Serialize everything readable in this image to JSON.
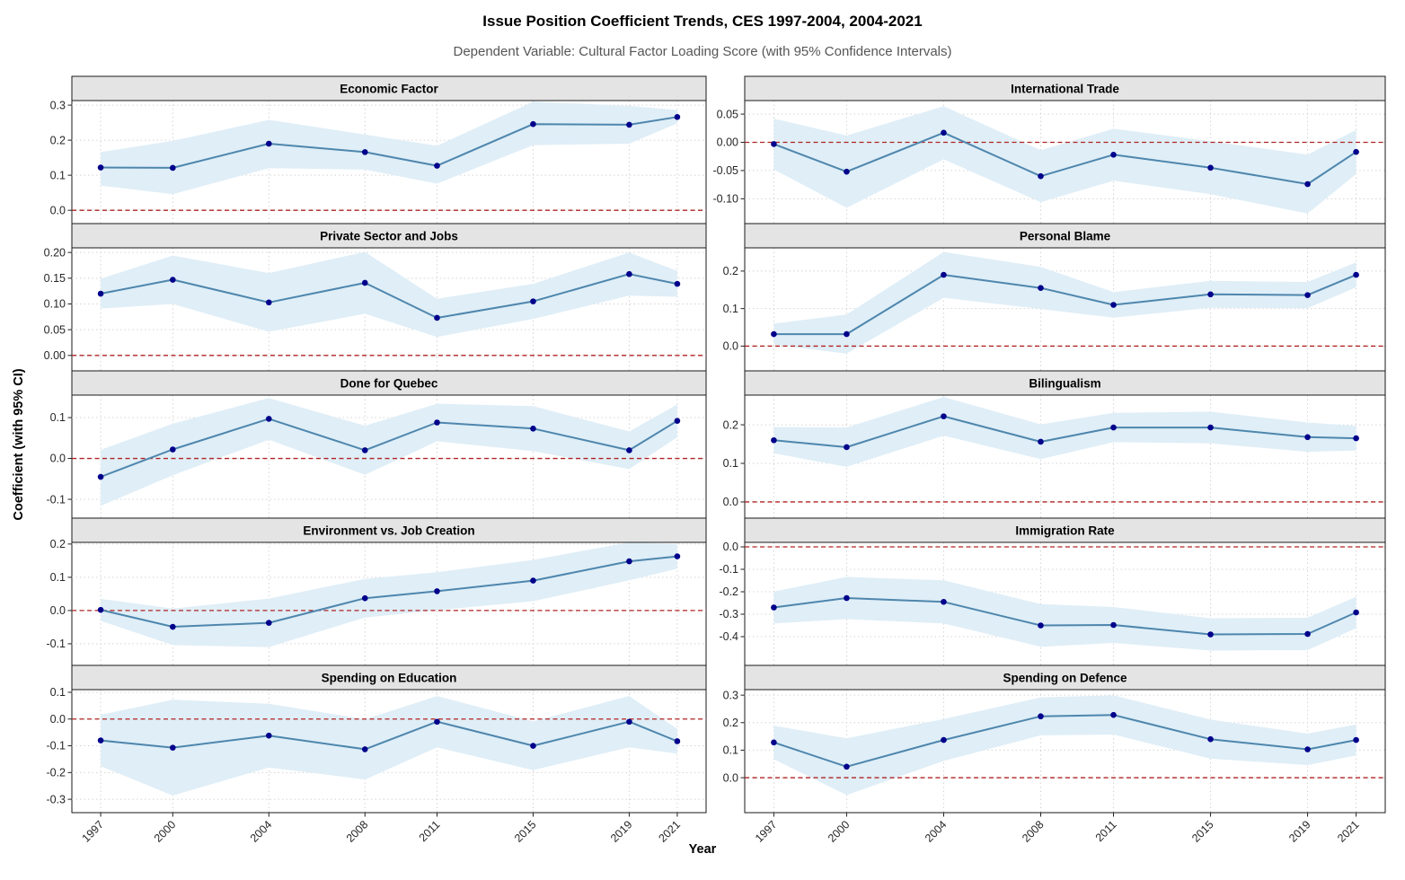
{
  "chart_data": {
    "type": "line",
    "title": "Issue Position Coefficient Trends, CES 1997-2004, 2004-2021",
    "subtitle": "Dependent Variable: Cultural Factor Loading Score (with 95% Confidence Intervals)",
    "xlabel": "Year",
    "ylabel": "Coefficient (with 95% CI)",
    "legend": "none",
    "grid": "dotted-major",
    "facets_layout": {
      "rows": 5,
      "cols": 2
    },
    "x": [
      1997,
      2000,
      2004,
      2008,
      2011,
      2015,
      2019,
      2021
    ],
    "x_tick_labels": [
      "1997",
      "2000",
      "2004",
      "2008",
      "2011",
      "2015",
      "2019",
      "2021"
    ],
    "colors": {
      "line": "#4e86ad",
      "point": "#00008b",
      "ribbon": "#dfeef7",
      "zero_line": "#b22222",
      "strip_bg": "#e4e4e4",
      "grid": "#d4d4d4",
      "panel_border": "#1a1a1a",
      "tick_text": "#262626",
      "axis_tick": "#222222"
    },
    "panels": [
      {
        "title": "Economic Factor",
        "slug": "economic-factor",
        "ylim": [
          -0.038,
          0.313
        ],
        "ytick_values": [
          0.0,
          0.1,
          0.2,
          0.3
        ],
        "ytick_labels": [
          "0.0",
          "0.1",
          "0.2",
          "0.3"
        ],
        "values": [
          0.122,
          0.121,
          0.19,
          0.166,
          0.127,
          0.246,
          0.244,
          0.266
        ],
        "ci_lower": [
          0.07,
          0.046,
          0.12,
          0.116,
          0.076,
          0.186,
          0.19,
          0.248
        ],
        "ci_upper": [
          0.166,
          0.198,
          0.258,
          0.216,
          0.184,
          0.31,
          0.298,
          0.286
        ]
      },
      {
        "title": "International Trade",
        "slug": "international-trade",
        "ylim": [
          -0.144,
          0.074
        ],
        "ytick_values": [
          -0.1,
          -0.05,
          0.0,
          0.05
        ],
        "ytick_labels": [
          "-0.10",
          "-0.05",
          "0.00",
          "0.05"
        ],
        "values": [
          -0.003,
          -0.052,
          0.017,
          -0.06,
          -0.022,
          -0.045,
          -0.074,
          -0.017
        ],
        "ci_lower": [
          -0.048,
          -0.116,
          -0.03,
          -0.106,
          -0.068,
          -0.092,
          -0.126,
          -0.056
        ],
        "ci_upper": [
          0.042,
          0.012,
          0.064,
          -0.014,
          0.024,
          0.002,
          -0.022,
          0.022
        ]
      },
      {
        "title": "Private Sector and Jobs",
        "slug": "private-sector-and-jobs",
        "ylim": [
          -0.03,
          0.209
        ],
        "ytick_values": [
          0.0,
          0.05,
          0.1,
          0.15,
          0.2
        ],
        "ytick_labels": [
          "0.00",
          "0.05",
          "0.10",
          "0.15",
          "0.20"
        ],
        "values": [
          0.12,
          0.147,
          0.103,
          0.141,
          0.073,
          0.105,
          0.158,
          0.139
        ],
        "ci_lower": [
          0.091,
          0.1,
          0.046,
          0.081,
          0.036,
          0.071,
          0.116,
          0.114
        ],
        "ci_upper": [
          0.149,
          0.194,
          0.16,
          0.201,
          0.11,
          0.139,
          0.2,
          0.164
        ]
      },
      {
        "title": "Personal Blame",
        "slug": "personal-blame",
        "ylim": [
          -0.066,
          0.262
        ],
        "ytick_values": [
          0.0,
          0.1,
          0.2
        ],
        "ytick_labels": [
          "0.0",
          "0.1",
          "0.2"
        ],
        "values": [
          0.032,
          0.032,
          0.19,
          0.155,
          0.11,
          0.138,
          0.136,
          0.19
        ],
        "ci_lower": [
          0.004,
          -0.02,
          0.129,
          0.099,
          0.076,
          0.102,
          0.101,
          0.157
        ],
        "ci_upper": [
          0.06,
          0.084,
          0.251,
          0.211,
          0.144,
          0.174,
          0.171,
          0.223
        ]
      },
      {
        "title": "Done for Quebec",
        "slug": "done-for-quebec",
        "ylim": [
          -0.146,
          0.155
        ],
        "ytick_values": [
          -0.1,
          0.0,
          0.1
        ],
        "ytick_labels": [
          "-0.1",
          "0.0",
          "0.1"
        ],
        "values": [
          -0.045,
          0.022,
          0.097,
          0.02,
          0.088,
          0.073,
          0.02,
          0.092
        ],
        "ci_lower": [
          -0.116,
          -0.041,
          0.046,
          -0.04,
          0.042,
          0.018,
          -0.026,
          0.052
        ],
        "ci_upper": [
          0.021,
          0.085,
          0.148,
          0.08,
          0.134,
          0.128,
          0.066,
          0.132
        ]
      },
      {
        "title": "Bilingualism",
        "slug": "bilingualism",
        "ylim": [
          -0.042,
          0.277
        ],
        "ytick_values": [
          0.0,
          0.1,
          0.2
        ],
        "ytick_labels": [
          "0.0",
          "0.1",
          "0.2"
        ],
        "values": [
          0.16,
          0.142,
          0.222,
          0.156,
          0.193,
          0.193,
          0.168,
          0.165
        ],
        "ci_lower": [
          0.126,
          0.091,
          0.172,
          0.111,
          0.155,
          0.152,
          0.13,
          0.133
        ],
        "ci_upper": [
          0.194,
          0.193,
          0.272,
          0.201,
          0.231,
          0.234,
          0.206,
          0.197
        ]
      },
      {
        "title": "Environment vs. Job Creation",
        "slug": "environment-vs-job-creation",
        "ylim": [
          -0.165,
          0.205
        ],
        "ytick_values": [
          -0.1,
          0.0,
          0.1,
          0.2
        ],
        "ytick_labels": [
          "-0.1",
          "0.0",
          "0.1",
          "0.2"
        ],
        "values": [
          0.002,
          -0.049,
          -0.037,
          0.037,
          0.058,
          0.09,
          0.148,
          0.163
        ],
        "ci_lower": [
          -0.031,
          -0.104,
          -0.11,
          -0.021,
          0.001,
          0.028,
          0.091,
          0.126
        ],
        "ci_upper": [
          0.035,
          0.006,
          0.036,
          0.095,
          0.115,
          0.152,
          0.205,
          0.2
        ]
      },
      {
        "title": "Immigration Rate",
        "slug": "immigration-rate",
        "ylim": [
          -0.528,
          0.02
        ],
        "ytick_values": [
          -0.4,
          -0.3,
          -0.2,
          -0.1,
          0.0
        ],
        "ytick_labels": [
          "-0.4",
          "-0.3",
          "-0.2",
          "-0.1",
          "0.0"
        ],
        "values": [
          -0.27,
          -0.228,
          -0.245,
          -0.35,
          -0.348,
          -0.39,
          -0.388,
          -0.292
        ],
        "ci_lower": [
          -0.341,
          -0.322,
          -0.341,
          -0.445,
          -0.428,
          -0.462,
          -0.46,
          -0.362
        ],
        "ci_upper": [
          -0.199,
          -0.134,
          -0.149,
          -0.255,
          -0.268,
          -0.318,
          -0.316,
          -0.222
        ]
      },
      {
        "title": "Spending on Education",
        "slug": "spending-on-education",
        "ylim": [
          -0.35,
          0.11
        ],
        "ytick_values": [
          -0.3,
          -0.2,
          -0.1,
          0.0,
          0.1
        ],
        "ytick_labels": [
          "-0.3",
          "-0.2",
          "-0.1",
          "0.0",
          "0.1"
        ],
        "values": [
          -0.08,
          -0.107,
          -0.062,
          -0.113,
          -0.01,
          -0.1,
          -0.01,
          -0.083
        ],
        "ci_lower": [
          -0.176,
          -0.286,
          -0.181,
          -0.226,
          -0.106,
          -0.191,
          -0.106,
          -0.129
        ],
        "ci_upper": [
          0.016,
          0.072,
          0.057,
          -0.001,
          0.086,
          -0.009,
          0.086,
          -0.037
        ]
      },
      {
        "title": "Spending on Defence",
        "slug": "spending-on-defence",
        "ylim": [
          -0.127,
          0.32
        ],
        "ytick_values": [
          0.0,
          0.1,
          0.2,
          0.3
        ],
        "ytick_labels": [
          "0.0",
          "0.1",
          "0.2",
          "0.3"
        ],
        "values": [
          0.128,
          0.04,
          0.137,
          0.223,
          0.228,
          0.14,
          0.103,
          0.137
        ],
        "ci_lower": [
          0.067,
          -0.063,
          0.061,
          0.154,
          0.157,
          0.069,
          0.046,
          0.081
        ],
        "ci_upper": [
          0.189,
          0.143,
          0.213,
          0.292,
          0.299,
          0.211,
          0.16,
          0.193
        ]
      }
    ]
  }
}
